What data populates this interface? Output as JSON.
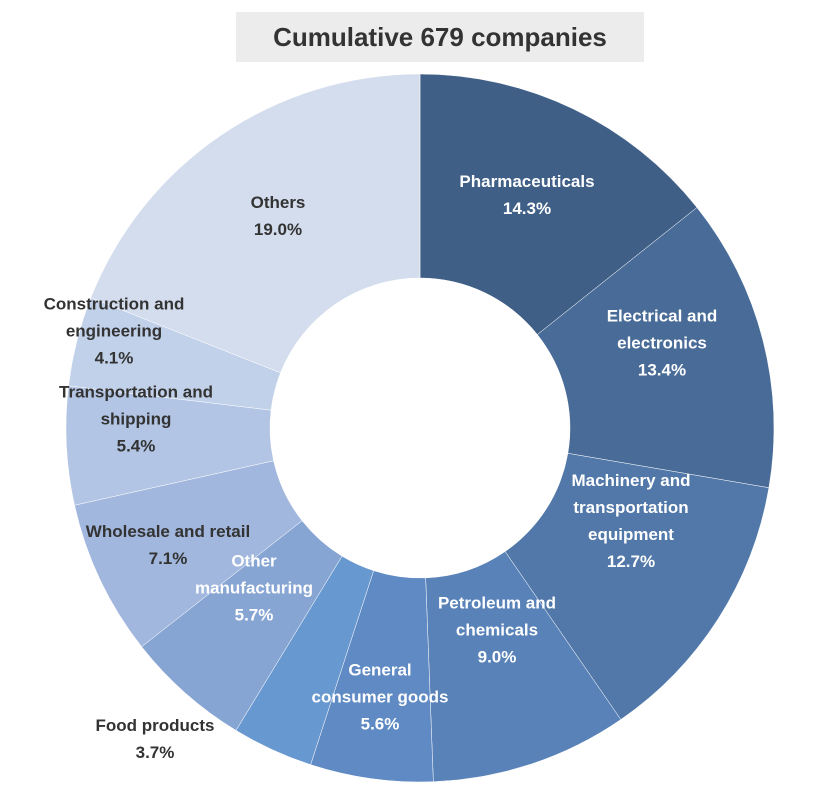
{
  "chart_data": {
    "type": "pie",
    "title": "Cumulative 679 companies",
    "donut": true,
    "slices": [
      {
        "label": [
          "Pharmaceuticals"
        ],
        "pct": "14.3%",
        "value": 14.3,
        "color": "#3f5f87",
        "text_color": "#ffffff"
      },
      {
        "label": [
          "Electrical and",
          "electronics"
        ],
        "pct": "13.4%",
        "value": 13.4,
        "color": "#486b97",
        "text_color": "#ffffff"
      },
      {
        "label": [
          "Machinery and",
          "transportation",
          "equipment"
        ],
        "pct": "12.7%",
        "value": 12.7,
        "color": "#5178a8",
        "text_color": "#ffffff"
      },
      {
        "label": [
          "Petroleum and",
          "chemicals"
        ],
        "pct": "9.0%",
        "value": 9.0,
        "color": "#5882b8",
        "text_color": "#ffffff"
      },
      {
        "label": [
          "General",
          "consumer goods"
        ],
        "pct": "5.6%",
        "value": 5.6,
        "color": "#5f8ac3",
        "text_color": "#ffffff"
      },
      {
        "label": [
          "Food products"
        ],
        "pct": "3.7%",
        "value": 3.7,
        "color": "#6898d0",
        "text_color": "#333333"
      },
      {
        "label": [
          "Other",
          "manufacturing"
        ],
        "pct": "5.7%",
        "value": 5.7,
        "color": "#87a5d3",
        "text_color": "#ffffff"
      },
      {
        "label": [
          "Wholesale and retail"
        ],
        "pct": "7.1%",
        "value": 7.1,
        "color": "#a1b7dd",
        "text_color": "#333333"
      },
      {
        "label": [
          "Transportation and",
          "shipping"
        ],
        "pct": "5.4%",
        "value": 5.4,
        "color": "#b2c5e4",
        "text_color": "#333333"
      },
      {
        "label": [
          "Construction and",
          "engineering"
        ],
        "pct": "4.1%",
        "value": 4.1,
        "color": "#c2d1ea",
        "text_color": "#333333"
      },
      {
        "label": [
          "Others"
        ],
        "pct": "19.0%",
        "value": 19.0,
        "color": "#d3dded",
        "text_color": "#333333"
      }
    ]
  }
}
